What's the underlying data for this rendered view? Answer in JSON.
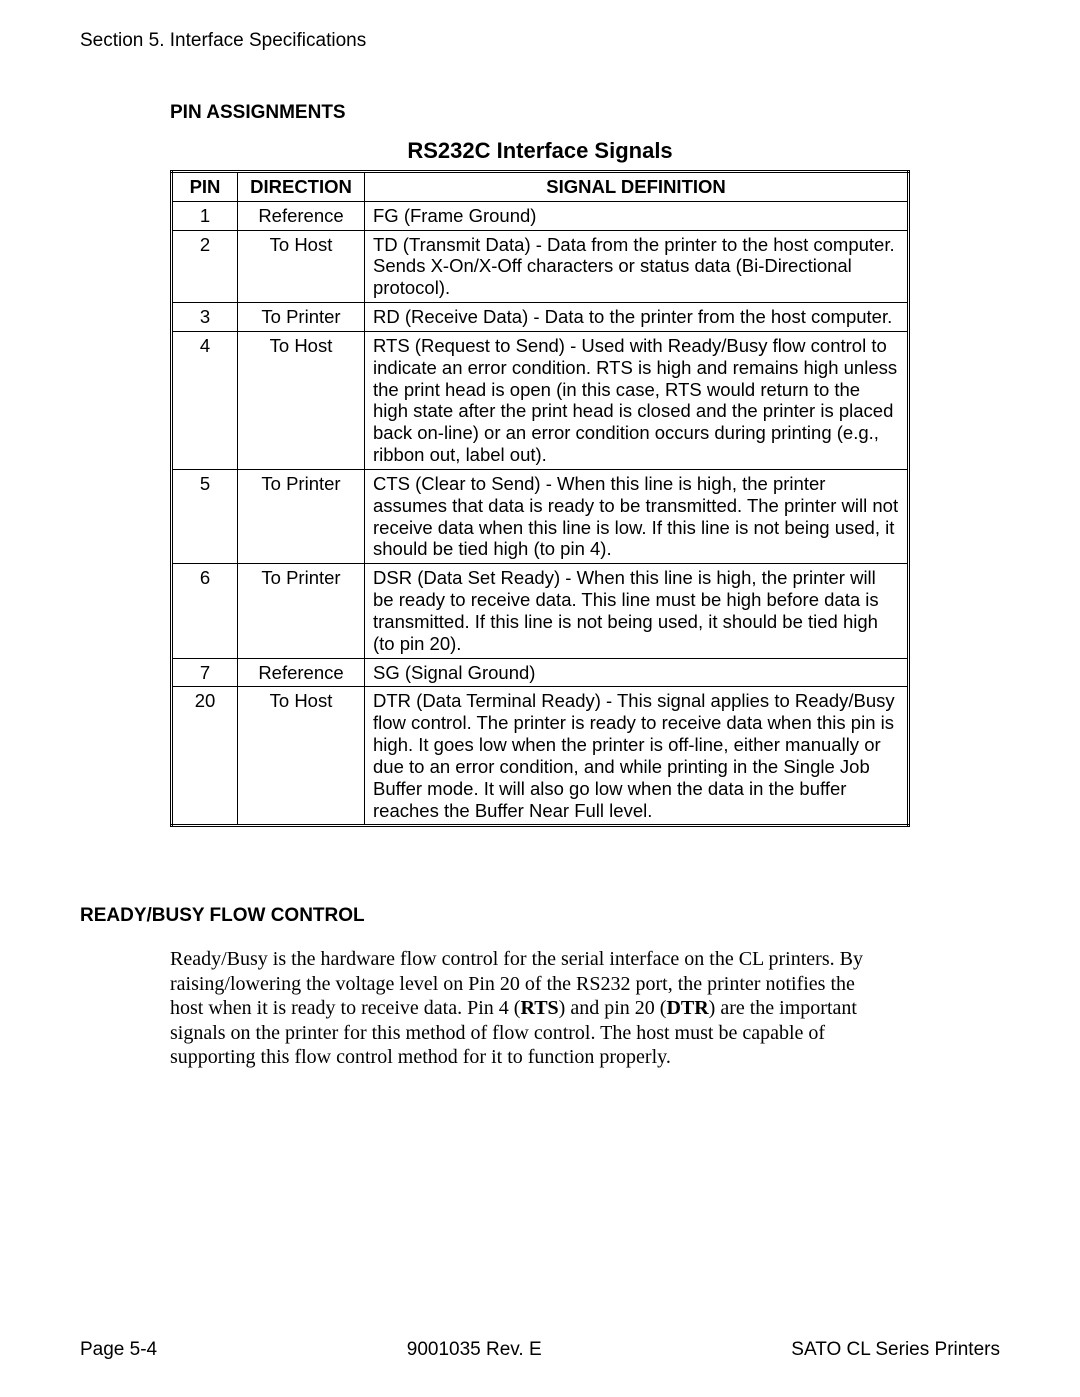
{
  "header": {
    "section_label": "Section 5. Interface Specifications"
  },
  "pin_assignments": {
    "heading": "PIN ASSIGNMENTS",
    "table_title": "RS232C Interface Signals",
    "columns": [
      "PIN",
      "DIRECTION",
      "SIGNAL DEFINITION"
    ],
    "rows": [
      {
        "pin": "1",
        "direction": "Reference",
        "definition": "FG (Frame Ground)"
      },
      {
        "pin": "2",
        "direction": "To Host",
        "definition": "TD (Transmit Data) - Data from the printer to the host computer. Sends X-On/X-Off characters or status data (Bi-Directional protocol)."
      },
      {
        "pin": "3",
        "direction": "To Printer",
        "definition": "RD (Receive Data) - Data to the printer from the host computer."
      },
      {
        "pin": "4",
        "direction": "To Host",
        "definition": "RTS (Request to Send) - Used with Ready/Busy flow control to indicate an error condition. RTS is high and remains high unless the print head is open (in this case, RTS would return to the high state after the print head is closed and the printer is placed back on-line) or an error condition occurs during printing (e.g., ribbon out, label out)."
      },
      {
        "pin": "5",
        "direction": "To Printer",
        "definition": "CTS (Clear to Send) - When this line is high, the printer assumes that data is ready to be transmitted. The printer will not receive data when this line is low. If this line is not being used, it should be tied high (to pin 4)."
      },
      {
        "pin": "6",
        "direction": "To Printer",
        "definition": "DSR (Data Set Ready) - When this line is high, the printer will be ready to receive data. This line must be high before data is transmitted. If this line is not being used, it should be tied high (to pin 20)."
      },
      {
        "pin": "7",
        "direction": "Reference",
        "definition": "SG (Signal Ground)"
      },
      {
        "pin": "20",
        "direction": "To Host",
        "definition": "DTR (Data Terminal Ready) - This signal applies to Ready/Busy flow control. The printer is ready to receive data when this pin is high. It goes low when the printer is off-line, either manually or due to an error condition, and while printing in the Single Job Buffer mode. It will also go low when the data in the buffer reaches the Buffer Near Full level."
      }
    ]
  },
  "flow_control": {
    "heading": "READY/BUSY FLOW CONTROL",
    "para_pre": "Ready/Busy is the hardware flow control for the serial interface on the CL printers. By raising/lowering the voltage level on Pin 20 of the RS232 port, the printer notifies the host when it is ready to receive data. Pin 4 (",
    "bold1": "RTS",
    "para_mid": ") and pin 20 (",
    "bold2": "DTR",
    "para_post": ") are the important signals on the printer for this method of flow control. The host must be capable of supporting this flow control method for it to function properly."
  },
  "footer": {
    "left": "Page 5-4",
    "center": "9001035 Rev. E",
    "right": "SATO CL Series Printers"
  }
}
